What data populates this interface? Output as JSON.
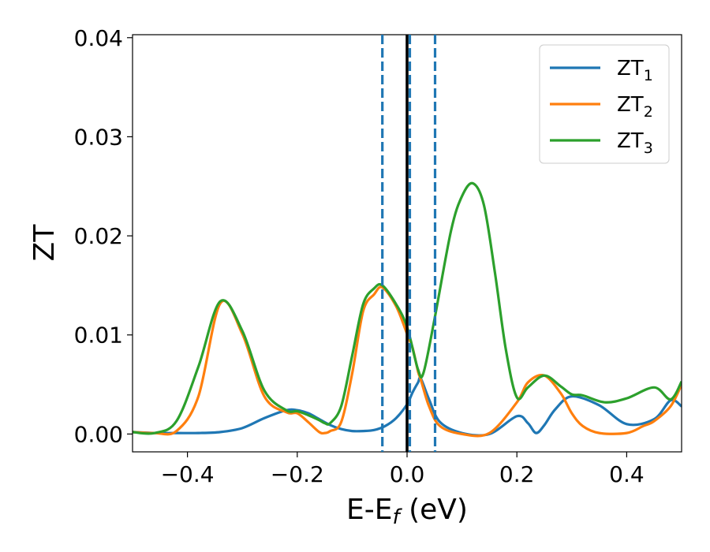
{
  "chart_data": {
    "type": "line",
    "title": "",
    "xlabel": "E-E",
    "xlabel_sub": "f",
    "xlabel_unit": " (eV)",
    "ylabel": "ZT",
    "xlim": [
      -0.5,
      0.5
    ],
    "ylim": [
      -0.0018,
      0.0403
    ],
    "xticks": [
      -0.4,
      -0.2,
      0.0,
      0.2,
      0.4
    ],
    "xtick_labels": [
      "−0.4",
      "−0.2",
      "0.0",
      "0.2",
      "0.4"
    ],
    "yticks": [
      0.0,
      0.01,
      0.02,
      0.03,
      0.04
    ],
    "ytick_labels": [
      "0.00",
      "0.01",
      "0.02",
      "0.03",
      "0.04"
    ],
    "grid": false,
    "legend_position": "top-right",
    "vlines": [
      {
        "x": 0.0,
        "style": "solid",
        "color": "#000000"
      },
      {
        "x": -0.045,
        "style": "dashed",
        "color": "#1f77b4"
      },
      {
        "x": 0.005,
        "style": "dashed",
        "color": "#1f77b4"
      },
      {
        "x": 0.051,
        "style": "dashed",
        "color": "#1f77b4"
      }
    ],
    "series": [
      {
        "name": "ZT",
        "name_sub": "1",
        "color": "#1f77b4",
        "x": [
          -0.5,
          -0.46,
          -0.42,
          -0.38,
          -0.34,
          -0.3,
          -0.26,
          -0.22,
          -0.2,
          -0.18,
          -0.16,
          -0.14,
          -0.12,
          -0.1,
          -0.08,
          -0.06,
          -0.04,
          -0.02,
          0.0,
          0.01,
          0.02,
          0.025,
          0.04,
          0.06,
          0.1,
          0.15,
          0.2,
          0.22,
          0.235,
          0.25,
          0.27,
          0.3,
          0.35,
          0.4,
          0.45,
          0.48,
          0.5
        ],
        "y": [
          0.0002,
          0.0001,
          0.0001,
          0.0001,
          0.0002,
          0.0006,
          0.0016,
          0.0024,
          0.0024,
          0.0021,
          0.0015,
          0.0009,
          0.0005,
          0.0003,
          0.0003,
          0.0004,
          0.0008,
          0.0016,
          0.003,
          0.0042,
          0.0052,
          0.0056,
          0.0035,
          0.0012,
          0.0001,
          0.0,
          0.0018,
          0.0011,
          0.0001,
          0.0009,
          0.0025,
          0.0038,
          0.0029,
          0.001,
          0.0015,
          0.0034,
          0.0028
        ]
      },
      {
        "name": "ZT",
        "name_sub": "2",
        "color": "#ff7f0e",
        "x": [
          -0.5,
          -0.46,
          -0.42,
          -0.38,
          -0.34,
          -0.3,
          -0.26,
          -0.22,
          -0.2,
          -0.18,
          -0.16,
          -0.15,
          -0.14,
          -0.12,
          -0.1,
          -0.08,
          -0.06,
          -0.045,
          -0.02,
          0.0,
          0.01,
          0.02,
          0.025,
          0.04,
          0.06,
          0.1,
          0.15,
          0.2,
          0.22,
          0.25,
          0.28,
          0.3,
          0.32,
          0.35,
          0.4,
          0.43,
          0.45,
          0.48,
          0.5
        ],
        "y": [
          0.0002,
          0.0001,
          0.0003,
          0.0038,
          0.0132,
          0.0101,
          0.0038,
          0.0022,
          0.0021,
          0.0012,
          0.0002,
          0.0001,
          0.0003,
          0.0012,
          0.0061,
          0.0124,
          0.0141,
          0.0148,
          0.0129,
          0.0101,
          0.0087,
          0.0063,
          0.0055,
          0.0028,
          0.0008,
          0.0,
          0.0001,
          0.0032,
          0.0052,
          0.0059,
          0.0041,
          0.0021,
          0.0008,
          0.0001,
          0.0001,
          0.0008,
          0.0013,
          0.0028,
          0.005
        ]
      },
      {
        "name": "ZT",
        "name_sub": "3",
        "color": "#2ca02c",
        "x": [
          -0.5,
          -0.46,
          -0.42,
          -0.38,
          -0.34,
          -0.3,
          -0.26,
          -0.22,
          -0.2,
          -0.18,
          -0.16,
          -0.15,
          -0.14,
          -0.12,
          -0.1,
          -0.08,
          -0.06,
          -0.045,
          -0.02,
          0.0,
          0.02,
          0.03,
          0.05,
          0.08,
          0.1,
          0.12,
          0.14,
          0.16,
          0.18,
          0.2,
          0.22,
          0.25,
          0.28,
          0.3,
          0.32,
          0.36,
          0.4,
          0.45,
          0.48,
          0.5
        ],
        "y": [
          0.0002,
          0.0001,
          0.0013,
          0.0068,
          0.0134,
          0.0104,
          0.0044,
          0.0024,
          0.0023,
          0.0019,
          0.0014,
          0.0011,
          0.0011,
          0.0028,
          0.0079,
          0.0131,
          0.0147,
          0.015,
          0.0131,
          0.0108,
          0.0065,
          0.0062,
          0.0116,
          0.0205,
          0.024,
          0.0253,
          0.0231,
          0.0163,
          0.0085,
          0.0037,
          0.0047,
          0.0059,
          0.0048,
          0.004,
          0.0039,
          0.0032,
          0.0036,
          0.0047,
          0.0035,
          0.0053
        ]
      }
    ]
  }
}
